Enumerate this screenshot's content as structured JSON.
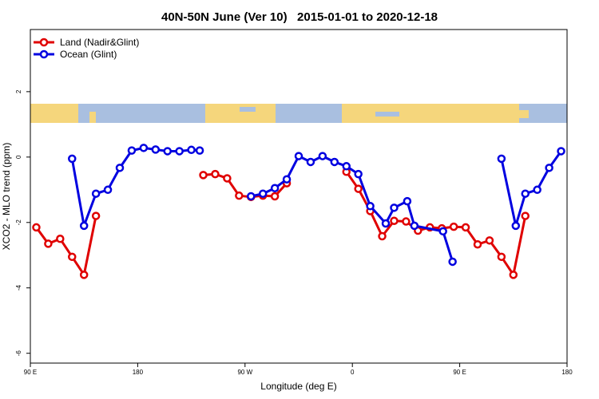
{
  "chart_data": {
    "type": "line",
    "title": "40N-50N June (Ver 10)   2015-01-01 to 2020-12-18",
    "x_label": "Longitude (deg E)",
    "y_label": "XCO2 - MLO trend (ppm)",
    "xlim": [
      90,
      540
    ],
    "xticks": [
      {
        "value": 90,
        "label": "90 E"
      },
      {
        "value": 180,
        "label": "180"
      },
      {
        "value": 270,
        "label": "90 W"
      },
      {
        "value": 360,
        "label": "0"
      },
      {
        "value": 450,
        "label": "90 E"
      },
      {
        "value": 540,
        "label": "180"
      }
    ],
    "ylim": [
      -6.3,
      3.9
    ],
    "yticks": [
      -6,
      -4,
      -2,
      0,
      2
    ],
    "legend": "top-left",
    "series": [
      {
        "name": "Land (Nadir&Glint)",
        "color": "#e00000",
        "x": [
          95,
          105,
          115,
          125,
          135,
          145,
          195,
          235,
          245,
          255,
          265,
          275,
          285,
          295,
          305,
          335,
          355,
          365,
          375,
          385,
          395,
          405,
          415,
          425,
          435,
          445,
          455,
          465,
          475,
          485,
          495,
          505
        ],
        "values": [
          -2.15,
          -2.65,
          -2.5,
          -3.05,
          -3.6,
          -1.8,
          null,
          -0.55,
          -0.52,
          -0.65,
          -1.18,
          -1.22,
          -1.18,
          -1.2,
          -0.8,
          null,
          -0.45,
          -0.97,
          -1.65,
          -2.42,
          -1.95,
          -1.97,
          -2.25,
          -2.15,
          -2.18,
          -2.13,
          -2.15,
          -2.67,
          -2.55,
          -3.05,
          -3.6,
          -1.8
        ]
      },
      {
        "name": "Ocean (Glint)",
        "color": "#0000e0",
        "x": [
          125,
          135,
          145,
          155,
          165,
          175,
          185,
          195,
          205,
          215,
          225,
          232,
          255,
          275,
          285,
          295,
          305,
          315,
          325,
          335,
          345,
          355,
          365,
          375,
          388,
          395,
          406,
          412,
          436,
          444,
          465,
          485,
          497,
          505,
          515,
          525,
          535
        ],
        "values": [
          -0.05,
          -2.1,
          -1.12,
          -1.0,
          -0.33,
          0.2,
          0.28,
          0.23,
          0.18,
          0.18,
          0.22,
          0.2,
          null,
          -1.2,
          -1.12,
          -0.95,
          -0.68,
          0.03,
          -0.15,
          0.03,
          -0.15,
          -0.28,
          -0.52,
          -1.5,
          -2.03,
          -1.55,
          -1.35,
          -2.1,
          -2.27,
          -3.2,
          null,
          -0.05,
          -2.1,
          -1.12,
          -1.0,
          -0.33,
          0.18
        ]
      }
    ]
  }
}
